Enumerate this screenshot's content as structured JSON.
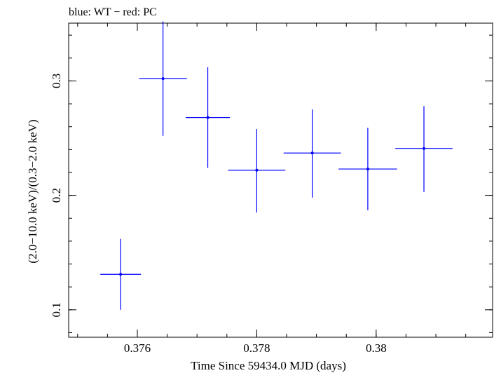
{
  "chart_data": {
    "type": "scatter",
    "title": "blue: WT − red: PC",
    "xlabel": "Time Since 59434.0 MJD (days)",
    "ylabel": "(2.0−10.0 keV)/(0.3−2.0 keV)",
    "xlim": [
      0.37485,
      0.38195
    ],
    "ylim": [
      0.076,
      0.3505
    ],
    "x_ticks": [
      0.376,
      0.378,
      0.38
    ],
    "x_tick_labels": [
      "0.376",
      "0.378",
      "0.38"
    ],
    "y_ticks": [
      0.1,
      0.2,
      0.3
    ],
    "y_tick_labels": [
      "0.1",
      "0.2",
      "0.3"
    ],
    "grid": false,
    "series": [
      {
        "color": "#0000ff",
        "points": [
          {
            "x": 0.37572,
            "y": 0.131,
            "xerr": 0.00034,
            "yerr_low": 0.031,
            "yerr_high": 0.031
          },
          {
            "x": 0.37643,
            "y": 0.302,
            "xerr": 0.0004,
            "yerr_low": 0.05,
            "yerr_high": 0.05
          },
          {
            "x": 0.37718,
            "y": 0.268,
            "xerr": 0.00037,
            "yerr_low": 0.044,
            "yerr_high": 0.044
          },
          {
            "x": 0.378,
            "y": 0.222,
            "xerr": 0.00048,
            "yerr_low": 0.037,
            "yerr_high": 0.036
          },
          {
            "x": 0.37893,
            "y": 0.237,
            "xerr": 0.00048,
            "yerr_low": 0.039,
            "yerr_high": 0.038
          },
          {
            "x": 0.37986,
            "y": 0.223,
            "xerr": 0.00049,
            "yerr_low": 0.036,
            "yerr_high": 0.036
          },
          {
            "x": 0.3808,
            "y": 0.241,
            "xerr": 0.00048,
            "yerr_low": 0.038,
            "yerr_high": 0.037
          }
        ]
      }
    ]
  }
}
